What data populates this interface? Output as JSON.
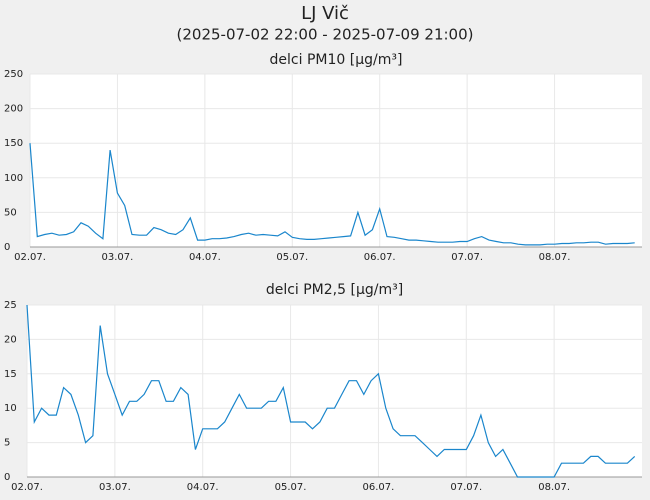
{
  "title": "LJ Vič",
  "subtitle": "(2025-07-02 22:00 - 2025-07-09 21:00)",
  "chart_data": [
    {
      "type": "line",
      "title": "delci PM10 [µg/m³]",
      "color": "#1a86cc",
      "grid": true,
      "x": [
        0,
        2,
        4,
        6,
        8,
        10,
        12,
        14,
        16,
        18,
        20,
        22,
        24,
        26,
        28,
        30,
        32,
        34,
        36,
        38,
        40,
        42,
        44,
        46,
        48,
        50,
        52,
        54,
        56,
        58,
        60,
        62,
        64,
        66,
        68,
        70,
        72,
        74,
        76,
        78,
        80,
        82,
        84,
        86,
        88,
        90,
        92,
        94,
        96,
        98,
        100,
        102,
        104,
        106,
        108,
        110,
        112,
        114,
        116,
        118,
        120,
        122,
        124,
        126,
        128,
        130,
        132,
        134,
        136,
        138,
        140,
        142,
        144,
        146,
        148,
        150,
        152,
        154,
        156,
        158,
        160,
        162,
        164,
        166
      ],
      "values": [
        150,
        15,
        18,
        20,
        17,
        18,
        22,
        35,
        30,
        20,
        12,
        140,
        78,
        60,
        18,
        17,
        17,
        28,
        25,
        20,
        18,
        25,
        42,
        10,
        10,
        12,
        12,
        13,
        15,
        18,
        20,
        17,
        18,
        17,
        16,
        22,
        14,
        12,
        11,
        11,
        12,
        13,
        14,
        15,
        16,
        50,
        17,
        25,
        55,
        15,
        14,
        12,
        10,
        10,
        9,
        8,
        7,
        7,
        7,
        8,
        8,
        12,
        15,
        10,
        8,
        6,
        6,
        4,
        3,
        3,
        3,
        4,
        4,
        5,
        5,
        6,
        6,
        7,
        7,
        4,
        5,
        5,
        5,
        6
      ],
      "xlim": [
        0,
        168
      ],
      "xticks": [
        {
          "value": 0,
          "label": "02.07."
        },
        {
          "value": 24,
          "label": "03.07."
        },
        {
          "value": 48,
          "label": "04.07."
        },
        {
          "value": 72,
          "label": "05.07."
        },
        {
          "value": 96,
          "label": "06.07."
        },
        {
          "value": 120,
          "label": "07.07."
        },
        {
          "value": 144,
          "label": "08.07."
        }
      ],
      "ylim": [
        0,
        250
      ],
      "yticks": [
        0,
        50,
        100,
        150,
        200,
        250
      ]
    },
    {
      "type": "line",
      "title": "delci PM2,5 [µg/m³]",
      "color": "#1a86cc",
      "grid": true,
      "x": [
        0,
        2,
        4,
        6,
        8,
        10,
        12,
        14,
        16,
        18,
        20,
        22,
        24,
        26,
        28,
        30,
        32,
        34,
        36,
        38,
        40,
        42,
        44,
        46,
        48,
        50,
        52,
        54,
        56,
        58,
        60,
        62,
        64,
        66,
        68,
        70,
        72,
        74,
        76,
        78,
        80,
        82,
        84,
        86,
        88,
        90,
        92,
        94,
        96,
        98,
        100,
        102,
        104,
        106,
        108,
        110,
        112,
        114,
        116,
        118,
        120,
        122,
        124,
        126,
        128,
        130,
        132,
        134,
        136,
        138,
        140,
        142,
        144,
        146,
        148,
        150,
        152,
        154,
        156,
        158,
        160,
        162,
        164,
        166
      ],
      "values": [
        25,
        8,
        10,
        9,
        9,
        13,
        12,
        9,
        5,
        6,
        22,
        15,
        12,
        9,
        11,
        11,
        12,
        14,
        14,
        11,
        11,
        13,
        12,
        4,
        7,
        7,
        7,
        8,
        10,
        12,
        10,
        10,
        10,
        11,
        11,
        13,
        8,
        8,
        8,
        7,
        8,
        10,
        10,
        12,
        14,
        14,
        12,
        14,
        15,
        10,
        7,
        6,
        6,
        6,
        5,
        4,
        3,
        4,
        4,
        4,
        4,
        6,
        9,
        5,
        3,
        4,
        2,
        0,
        0,
        0,
        0,
        0,
        0,
        2,
        2,
        2,
        2,
        3,
        3,
        2,
        2,
        2,
        2,
        3
      ],
      "xlim": [
        0,
        168
      ],
      "xticks": [
        {
          "value": 0,
          "label": "02.07."
        },
        {
          "value": 24,
          "label": "03.07."
        },
        {
          "value": 48,
          "label": "04.07."
        },
        {
          "value": 72,
          "label": "05.07."
        },
        {
          "value": 96,
          "label": "06.07."
        },
        {
          "value": 120,
          "label": "07.07."
        },
        {
          "value": 144,
          "label": "08.07."
        }
      ],
      "ylim": [
        0,
        25
      ],
      "yticks": [
        0,
        5,
        10,
        15,
        20,
        25
      ]
    }
  ]
}
